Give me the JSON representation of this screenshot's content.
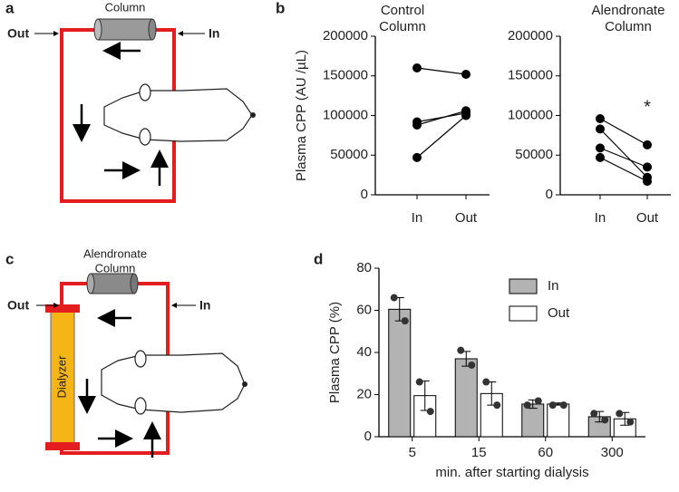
{
  "panel_labels": [
    "a",
    "b",
    "c",
    "d"
  ],
  "diagram_a": {
    "column": "Column",
    "out": "Out",
    "in": "In"
  },
  "diagram_c": {
    "column": [
      "Alendronate",
      "Column"
    ],
    "out": "Out",
    "in": "In",
    "dialyzer": "Dialyzer"
  },
  "chart_data": [
    {
      "type": "paired",
      "title": [
        "Control",
        "Column"
      ],
      "ylabel": "Plasma CPP (AU /µL)",
      "categories": [
        "In",
        "Out"
      ],
      "color": "#000000",
      "series": [
        {
          "values": [
            160000,
            152000
          ]
        },
        {
          "values": [
            92000,
            103000
          ]
        },
        {
          "values": [
            88000,
            106000
          ]
        },
        {
          "values": [
            47000,
            100000
          ]
        }
      ],
      "ylim": [
        0,
        200000
      ],
      "yticks": [
        0,
        50000,
        100000,
        150000,
        200000
      ]
    },
    {
      "type": "paired",
      "title": [
        "Alendronate",
        "Column"
      ],
      "annotation": "*",
      "categories": [
        "In",
        "Out"
      ],
      "color": "#000000",
      "series": [
        {
          "values": [
            96000,
            63000
          ]
        },
        {
          "values": [
            83000,
            22000
          ]
        },
        {
          "values": [
            59000,
            35000
          ]
        },
        {
          "values": [
            47000,
            17000
          ]
        }
      ],
      "ylim": [
        0,
        200000
      ],
      "yticks": [
        0,
        50000,
        100000,
        150000,
        200000
      ]
    },
    {
      "type": "bar",
      "ylabel": "Plasma CPP (%)",
      "xlabel": "min. after starting dialysis",
      "categories": [
        "5",
        "15",
        "60",
        "300"
      ],
      "series": [
        {
          "name": "In",
          "color": "#b3b3b3",
          "values": [
            60.5,
            37,
            15.5,
            9.5
          ],
          "errors": [
            5.5,
            3.5,
            2,
            2.5
          ],
          "points": [
            [
              66,
              55
            ],
            [
              41,
              34
            ],
            [
              15,
              17
            ],
            [
              11,
              8
            ]
          ]
        },
        {
          "name": "Out",
          "color": "#ffffff",
          "values": [
            19.5,
            20.5,
            15.5,
            8.5
          ],
          "errors": [
            7,
            5.5,
            0.5,
            3
          ],
          "points": [
            [
              26,
              12
            ],
            [
              26,
              15
            ],
            [
              15,
              15
            ],
            [
              11,
              7
            ]
          ]
        }
      ],
      "ylim": [
        0,
        80
      ],
      "yticks": [
        0,
        20,
        40,
        60,
        80
      ],
      "legend": "top-right"
    }
  ]
}
